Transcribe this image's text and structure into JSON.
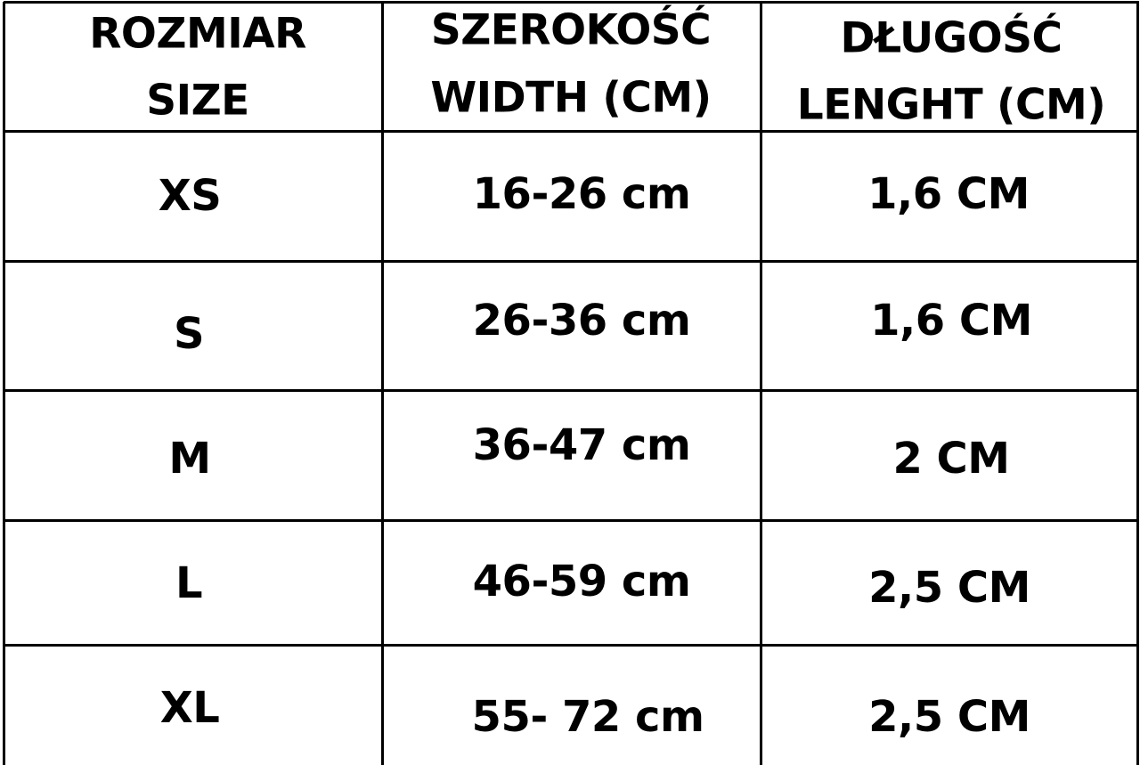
{
  "headers": [
    {
      "line1": "ROZMIAR",
      "line2": "SIZE"
    },
    {
      "line1": "SZEROKOŚĆ",
      "line2": "WIDTH (CM)"
    },
    {
      "line1": "DŁUGOŚĆ",
      "line2": "LENGHT (CM)"
    }
  ],
  "rows": [
    {
      "size": "XS",
      "width": "16-26 cm",
      "length": "1,6 CM"
    },
    {
      "size": "S",
      "width": "26-36 cm",
      "length": "1,6 CM"
    },
    {
      "size": "M",
      "width": "36-47 cm",
      "length": "2 CM"
    },
    {
      "size": "L",
      "width": "46-59 cm",
      "length": "2,5 CM"
    },
    {
      "size": "XL",
      "width": "55- 72 cm",
      "length": "2,5 CM"
    }
  ]
}
